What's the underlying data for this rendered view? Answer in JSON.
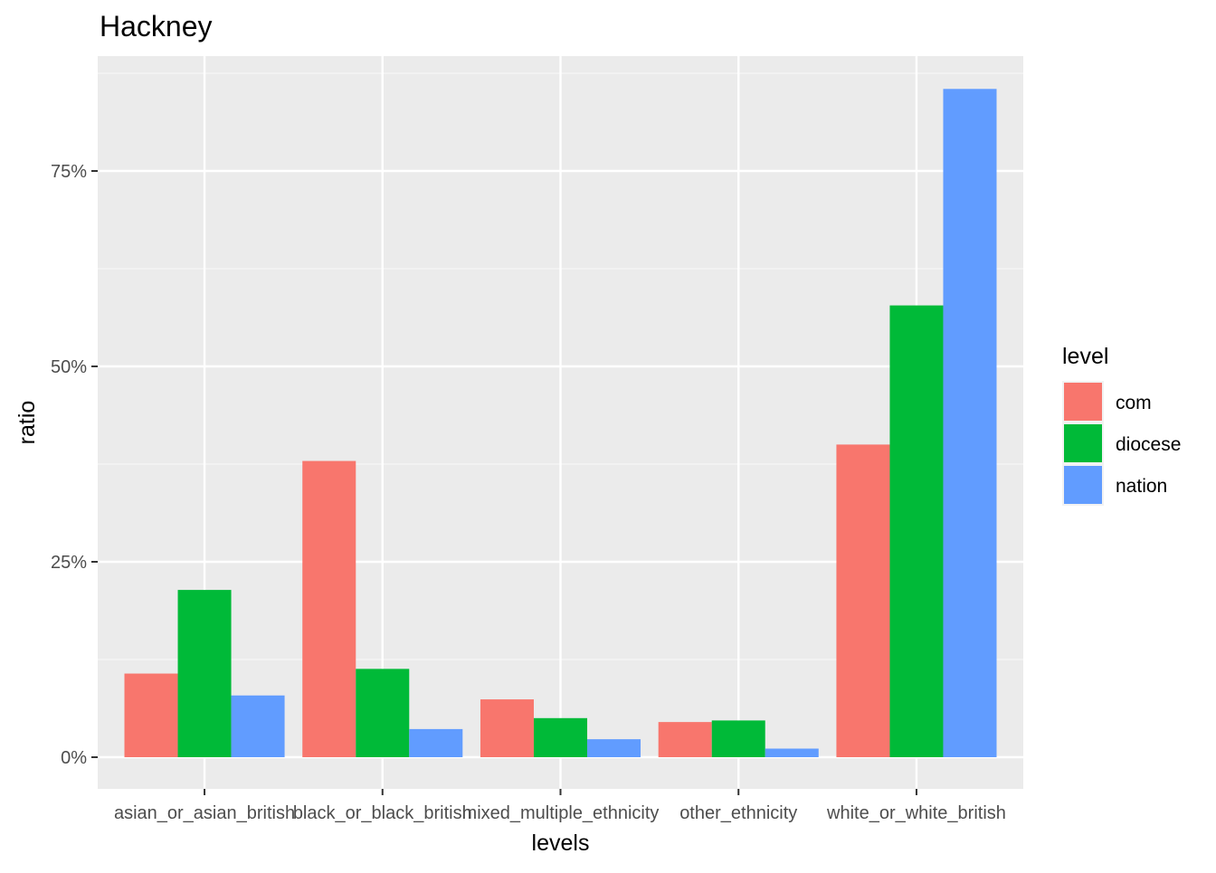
{
  "chart_data": {
    "type": "bar",
    "title": "Hackney",
    "xlabel": "levels",
    "ylabel": "ratio",
    "categories": [
      "asian_or_asian_british",
      "black_or_black_british",
      "mixed_multiple_ethnicity",
      "other_ethnicity",
      "white_or_white_british"
    ],
    "series": [
      {
        "name": "com",
        "color": "#F8766D",
        "values": [
          0.107,
          0.379,
          0.074,
          0.045,
          0.4
        ]
      },
      {
        "name": "diocese",
        "color": "#00BA38",
        "values": [
          0.214,
          0.113,
          0.05,
          0.047,
          0.578
        ]
      },
      {
        "name": "nation",
        "color": "#619CFF",
        "values": [
          0.079,
          0.036,
          0.023,
          0.011,
          0.855
        ]
      }
    ],
    "y_ticks": [
      {
        "value": 0,
        "label": "0%"
      },
      {
        "value": 0.25,
        "label": "25%"
      },
      {
        "value": 0.5,
        "label": "50%"
      },
      {
        "value": 0.75,
        "label": "75%"
      }
    ],
    "ylim": [
      -0.042,
      0.899
    ],
    "grid": true,
    "legend": {
      "title": "level",
      "position": "right"
    },
    "colors": {
      "panel_background": "#EBEBEB",
      "grid_major": "#FFFFFF",
      "grid_minor": "#F5F5F5",
      "axis_text": "#4D4D4D",
      "text": "#000000"
    }
  }
}
